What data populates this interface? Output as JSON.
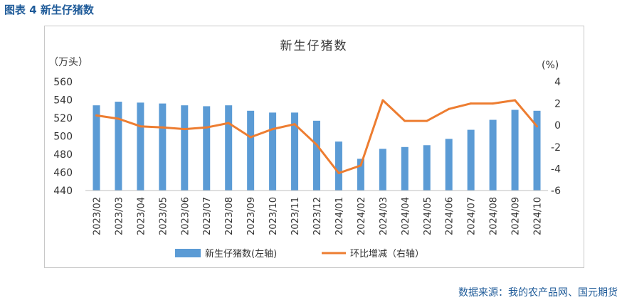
{
  "figure_label": "图表 4  新生仔猪数",
  "source": "数据来源：我的农产品网、国元期货",
  "chart_data": {
    "type": "bar",
    "title": "新生仔猪数",
    "left_unit": "（万头）",
    "right_unit": "(%)",
    "categories": [
      "2023/02",
      "2023/03",
      "2023/04",
      "2023/05",
      "2023/06",
      "2023/07",
      "2023/08",
      "2023/09",
      "2023/10",
      "2023/11",
      "2023/12",
      "2024/01",
      "2024/02",
      "2024/03",
      "2024/04",
      "2024/05",
      "2024/06",
      "2024/07",
      "2024/08",
      "2024/09",
      "2024/10"
    ],
    "ylim_left": [
      440,
      560
    ],
    "yticks_left": [
      440,
      460,
      480,
      500,
      520,
      540,
      560
    ],
    "ylim_right": [
      -6,
      4
    ],
    "yticks_right": [
      -6,
      -4,
      -2,
      0,
      2,
      4
    ],
    "series": [
      {
        "name": "新生仔猪数(左轴)",
        "type": "bar",
        "axis": "left",
        "color": "#5b9bd5",
        "values": [
          534,
          538,
          537,
          536,
          534,
          533,
          534,
          528,
          526,
          526,
          517,
          494,
          475,
          486,
          488,
          490,
          497,
          507,
          518,
          529,
          528
        ]
      },
      {
        "name": "环比增减（右轴）",
        "type": "line",
        "axis": "right",
        "color": "#ed7d31",
        "values": [
          0.9,
          0.6,
          -0.1,
          -0.2,
          -0.35,
          -0.2,
          0.2,
          -1.1,
          -0.35,
          0.1,
          -1.8,
          -4.4,
          -3.7,
          2.3,
          0.4,
          0.4,
          1.5,
          2.0,
          2.0,
          2.3,
          -0.1
        ]
      }
    ],
    "legend_position": "bottom",
    "grid": false
  }
}
